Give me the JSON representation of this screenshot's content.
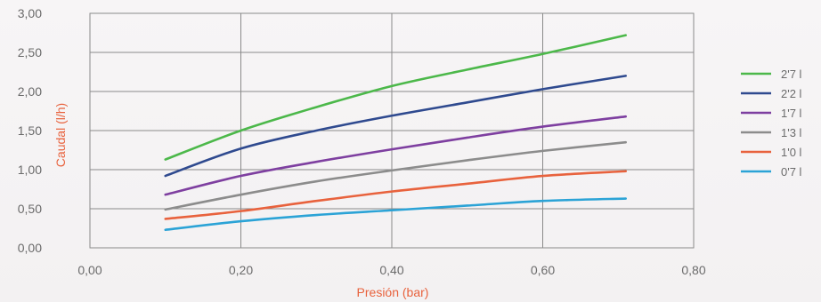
{
  "chart_data": {
    "type": "line",
    "xlabel": "Presión (bar)",
    "ylabel": "Caudal (l/h)",
    "xlim": [
      0,
      0.8
    ],
    "ylim": [
      0,
      3.0
    ],
    "x_ticks": [
      "0,00",
      "0,20",
      "0,40",
      "0,60",
      "0,80"
    ],
    "y_ticks": [
      "0,00",
      "0,50",
      "1,00",
      "1,50",
      "2,00",
      "2,50",
      "3,00"
    ],
    "x_tick_values": [
      0,
      0.2,
      0.4,
      0.6,
      0.8
    ],
    "y_tick_values": [
      0,
      0.5,
      1.0,
      1.5,
      2.0,
      2.5,
      3.0
    ],
    "grid": true,
    "legend_position": "right",
    "x": [
      0.1,
      0.2,
      0.3,
      0.4,
      0.5,
      0.6,
      0.71
    ],
    "series": [
      {
        "name": "2'7 l",
        "color": "#4cb84a",
        "values": [
          1.13,
          1.5,
          1.8,
          2.07,
          2.28,
          2.48,
          2.72
        ]
      },
      {
        "name": "2'2 l",
        "color": "#2f4a8f",
        "values": [
          0.92,
          1.27,
          1.5,
          1.69,
          1.86,
          2.03,
          2.2
        ]
      },
      {
        "name": "1'7 l",
        "color": "#7e3fa0",
        "values": [
          0.68,
          0.92,
          1.1,
          1.26,
          1.41,
          1.55,
          1.68
        ]
      },
      {
        "name": "1'3 l",
        "color": "#8c8c8c",
        "values": [
          0.49,
          0.68,
          0.85,
          0.99,
          1.12,
          1.24,
          1.35
        ]
      },
      {
        "name": "1'0 l",
        "color": "#e8623d",
        "values": [
          0.37,
          0.47,
          0.6,
          0.72,
          0.82,
          0.92,
          0.98
        ]
      },
      {
        "name": "0'7 l",
        "color": "#2ba3d6",
        "values": [
          0.23,
          0.34,
          0.42,
          0.48,
          0.54,
          0.6,
          0.63
        ]
      }
    ]
  }
}
